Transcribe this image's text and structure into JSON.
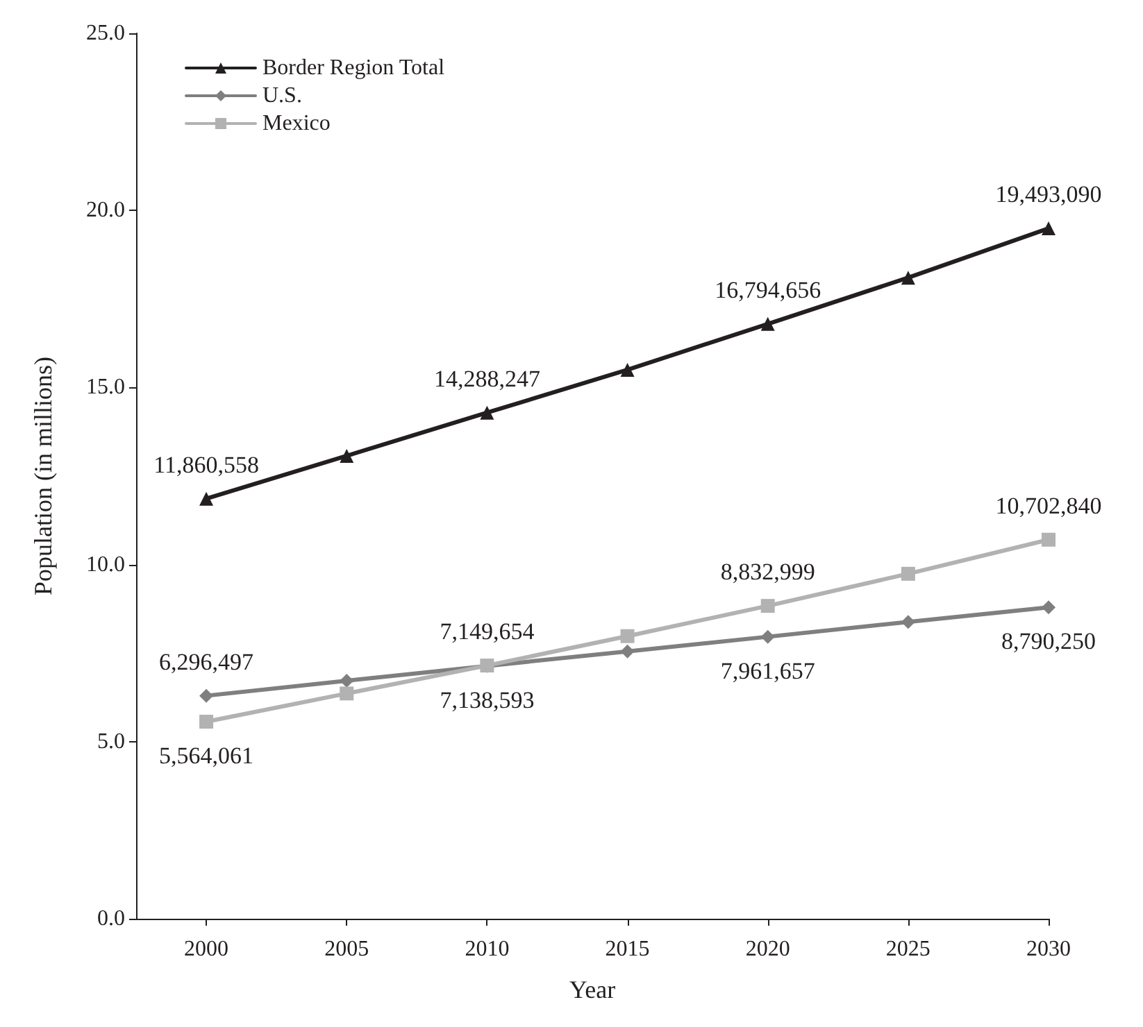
{
  "chart_data": {
    "type": "line",
    "xlabel": "Year",
    "ylabel": "Population (in millions)",
    "x": [
      2000,
      2005,
      2010,
      2015,
      2020,
      2025,
      2030
    ],
    "series": [
      {
        "name": "Border Region Total",
        "color": "#231f20",
        "marker": "triangle",
        "values": [
          11.860558,
          13.07,
          14.288247,
          15.5,
          16.794656,
          18.1,
          19.49309
        ]
      },
      {
        "name": "U.S.",
        "color": "#7f7f7f",
        "marker": "diamond",
        "values": [
          6.296497,
          6.72,
          7.138593,
          7.55,
          7.961657,
          8.38,
          8.79025
        ]
      },
      {
        "name": "Mexico",
        "color": "#b2b2b2",
        "marker": "square",
        "values": [
          5.564061,
          6.36,
          7.149654,
          7.98,
          8.832999,
          9.74,
          10.70284
        ]
      }
    ],
    "annotations": [
      {
        "text": "11,860,558",
        "x": 2000,
        "y": 11.860558
      },
      {
        "text": "14,288,247",
        "x": 2010,
        "y": 14.288247
      },
      {
        "text": "16,794,656",
        "x": 2020,
        "y": 16.794656
      },
      {
        "text": "19,493,090",
        "x": 2030,
        "y": 19.49309
      },
      {
        "text": "6,296,497",
        "x": 2000,
        "y": 6.296497
      },
      {
        "text": "7,138,593",
        "x": 2010,
        "y": 7.138593
      },
      {
        "text": "7,961,657",
        "x": 2020,
        "y": 7.961657
      },
      {
        "text": "8,790,250",
        "x": 2030,
        "y": 8.79025
      },
      {
        "text": "5,564,061",
        "x": 2000,
        "y": 5.564061
      },
      {
        "text": "7,149,654",
        "x": 2010,
        "y": 7.149654
      },
      {
        "text": "8,832,999",
        "x": 2020,
        "y": 8.832999
      },
      {
        "text": "10,702,840",
        "x": 2030,
        "y": 10.70284
      }
    ],
    "xlim": [
      1997.5,
      2030
    ],
    "xticks": [
      2000,
      2005,
      2010,
      2015,
      2020,
      2025,
      2030
    ],
    "ylim": [
      0,
      25
    ],
    "yticks": [
      {
        "value": 0,
        "label": "0.0"
      },
      {
        "value": 5,
        "label": "5.0"
      },
      {
        "value": 10,
        "label": "10.0"
      },
      {
        "value": 15,
        "label": "15.0"
      },
      {
        "value": 20,
        "label": "20.0"
      },
      {
        "value": 25,
        "label": "25.0"
      }
    ],
    "grid": false,
    "legend": "top left",
    "line_style": "solid"
  }
}
